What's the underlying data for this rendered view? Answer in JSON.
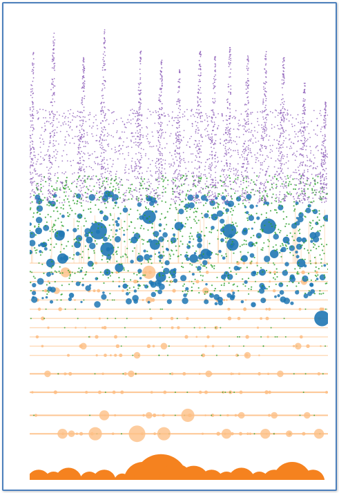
{
  "chart_data": {
    "type": "scatter",
    "title": "",
    "xlabel": "",
    "ylabel": "",
    "grid": false,
    "legend": "none",
    "x_range": [
      0,
      100
    ],
    "y_range": [
      0,
      100
    ],
    "series": [
      {
        "color": "#f5821f",
        "style": "filled-circles-baseline",
        "points": [
          {
            "x": 3,
            "y": 1,
            "r": 6
          },
          {
            "x": 8,
            "y": 1,
            "r": 5
          },
          {
            "x": 13,
            "y": 1,
            "r": 7
          },
          {
            "x": 20,
            "y": 1,
            "r": 5
          },
          {
            "x": 25,
            "y": 1,
            "r": 6
          },
          {
            "x": 31,
            "y": 1,
            "r": 4
          },
          {
            "x": 38,
            "y": 1,
            "r": 10
          },
          {
            "x": 44,
            "y": 1,
            "r": 14
          },
          {
            "x": 49,
            "y": 1,
            "r": 9
          },
          {
            "x": 55,
            "y": 1,
            "r": 8
          },
          {
            "x": 61,
            "y": 1,
            "r": 6
          },
          {
            "x": 66,
            "y": 1,
            "r": 5
          },
          {
            "x": 71,
            "y": 1,
            "r": 7
          },
          {
            "x": 77,
            "y": 1,
            "r": 5
          },
          {
            "x": 82,
            "y": 1,
            "r": 6
          },
          {
            "x": 88,
            "y": 1,
            "r": 10
          },
          {
            "x": 95,
            "y": 1,
            "r": 6
          }
        ]
      },
      {
        "color": "#fdbf86",
        "style": "rows-of-circles",
        "row_levels": [
          10,
          14,
          19,
          23,
          27,
          29,
          31,
          33,
          35,
          37,
          39,
          41,
          43,
          45,
          47
        ],
        "points": [
          {
            "x": 25,
            "y": 14,
            "r": 3
          },
          {
            "x": 40,
            "y": 14,
            "r": 2
          },
          {
            "x": 53,
            "y": 14,
            "r": 4
          },
          {
            "x": 71,
            "y": 14,
            "r": 2
          },
          {
            "x": 82,
            "y": 14,
            "r": 2
          },
          {
            "x": 93,
            "y": 14,
            "r": 2
          },
          {
            "x": 11,
            "y": 10,
            "r": 3
          },
          {
            "x": 14,
            "y": 10,
            "r": 2
          },
          {
            "x": 22,
            "y": 10,
            "r": 4
          },
          {
            "x": 36,
            "y": 10,
            "r": 5
          },
          {
            "x": 45,
            "y": 10,
            "r": 4
          },
          {
            "x": 66,
            "y": 10,
            "r": 3
          },
          {
            "x": 79,
            "y": 10,
            "r": 3
          },
          {
            "x": 87,
            "y": 10,
            "r": 2
          },
          {
            "x": 97,
            "y": 10,
            "r": 3
          },
          {
            "x": 6,
            "y": 23,
            "r": 2
          },
          {
            "x": 34,
            "y": 23,
            "r": 2
          },
          {
            "x": 60,
            "y": 23,
            "r": 2
          },
          {
            "x": 84,
            "y": 23,
            "r": 2
          },
          {
            "x": 36,
            "y": 27,
            "r": 2
          },
          {
            "x": 73,
            "y": 27,
            "r": 2
          },
          {
            "x": 18,
            "y": 29,
            "r": 2
          },
          {
            "x": 45,
            "y": 29,
            "r": 2
          },
          {
            "x": 90,
            "y": 29,
            "r": 2
          },
          {
            "x": 40,
            "y": 39,
            "r": 2
          },
          {
            "x": 9,
            "y": 41,
            "r": 2
          },
          {
            "x": 59,
            "y": 41,
            "r": 2
          },
          {
            "x": 12,
            "y": 45,
            "r": 3
          },
          {
            "x": 40,
            "y": 45,
            "r": 4
          },
          {
            "x": 92,
            "y": 43,
            "r": 2
          }
        ]
      },
      {
        "color": "#1f77b4",
        "style": "bubbles",
        "points": [
          {
            "x": 23,
            "y": 54,
            "r": 10
          },
          {
            "x": 67,
            "y": 54,
            "r": 8
          },
          {
            "x": 80,
            "y": 55,
            "r": 9
          },
          {
            "x": 26,
            "y": 50,
            "r": 8
          },
          {
            "x": 11,
            "y": 48,
            "r": 6
          },
          {
            "x": 59,
            "y": 49,
            "r": 6
          },
          {
            "x": 82,
            "y": 49,
            "r": 5
          },
          {
            "x": 10,
            "y": 53,
            "r": 6
          },
          {
            "x": 40,
            "y": 57,
            "r": 8
          },
          {
            "x": 68,
            "y": 51,
            "r": 7
          },
          {
            "x": 42,
            "y": 51,
            "r": 6
          },
          {
            "x": 91,
            "y": 47,
            "r": 5
          },
          {
            "x": 44,
            "y": 44,
            "r": 6
          },
          {
            "x": 98,
            "y": 35,
            "r": 9
          },
          {
            "x": 7,
            "y": 47,
            "r": 5
          },
          {
            "x": 30,
            "y": 46,
            "r": 5
          },
          {
            "x": 55,
            "y": 48,
            "r": 5
          },
          {
            "x": 26,
            "y": 45,
            "r": 4
          },
          {
            "x": 78,
            "y": 45,
            "r": 4
          },
          {
            "x": 86,
            "y": 52,
            "r": 4
          },
          {
            "x": 35,
            "y": 52,
            "r": 4
          },
          {
            "x": 50,
            "y": 55,
            "r": 5
          },
          {
            "x": 20,
            "y": 52,
            "r": 4
          },
          {
            "x": 95,
            "y": 53,
            "r": 4
          },
          {
            "x": 26,
            "y": 62,
            "r": 4
          },
          {
            "x": 62,
            "y": 57,
            "r": 4
          },
          {
            "x": 72,
            "y": 48,
            "r": 4
          },
          {
            "x": 16,
            "y": 51,
            "r": 4
          },
          {
            "x": 48,
            "y": 45,
            "r": 4
          },
          {
            "x": 37,
            "y": 48,
            "r": 4
          },
          {
            "x": 88,
            "y": 44,
            "r": 3
          },
          {
            "x": 5,
            "y": 51,
            "r": 3
          },
          {
            "x": 14,
            "y": 40,
            "r": 3
          },
          {
            "x": 32,
            "y": 42,
            "r": 3
          },
          {
            "x": 65,
            "y": 44,
            "r": 3
          },
          {
            "x": 75,
            "y": 38,
            "r": 3
          },
          {
            "x": 57,
            "y": 52,
            "r": 3
          },
          {
            "x": 92,
            "y": 52,
            "r": 3
          },
          {
            "x": 3,
            "y": 54,
            "r": 4
          }
        ]
      },
      {
        "color": "#2ca02c",
        "style": "small-dots",
        "dot_band": [
          40,
          66
        ],
        "points": []
      },
      {
        "color": "#9467bd",
        "style": "small-dots-spikes",
        "dot_band": [
          60,
          97
        ],
        "spike_peaks": [
          {
            "x": 0,
            "y": 93
          },
          {
            "x": 7,
            "y": 97
          },
          {
            "x": 17,
            "y": 92
          },
          {
            "x": 24,
            "y": 98
          },
          {
            "x": 36,
            "y": 93
          },
          {
            "x": 43,
            "y": 91
          },
          {
            "x": 49,
            "y": 89
          },
          {
            "x": 56,
            "y": 93
          },
          {
            "x": 61,
            "y": 92
          },
          {
            "x": 66,
            "y": 94
          },
          {
            "x": 72,
            "y": 92
          },
          {
            "x": 78,
            "y": 93
          },
          {
            "x": 84,
            "y": 92
          },
          {
            "x": 91,
            "y": 86
          },
          {
            "x": 98,
            "y": 82
          }
        ]
      }
    ]
  }
}
